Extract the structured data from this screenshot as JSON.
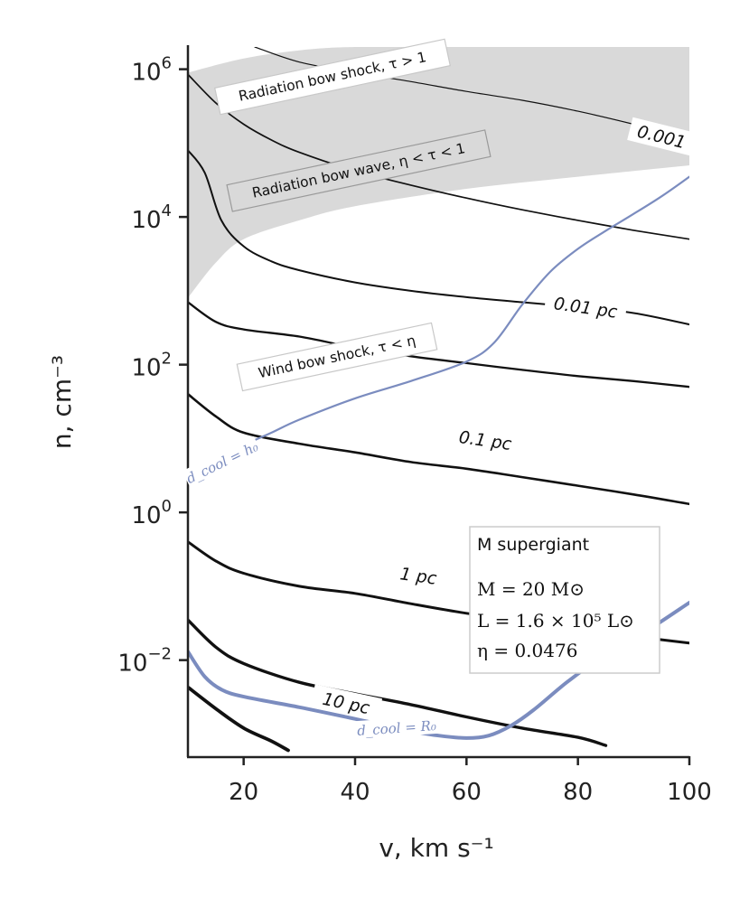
{
  "chart_data": {
    "type": "line",
    "xlabel": "v, km s⁻¹",
    "ylabel": "n, cm⁻³",
    "xlim": [
      10,
      100
    ],
    "ylim": [
      0.0005,
      2000000
    ],
    "y_scale": "log",
    "x_ticks": [
      20,
      40,
      60,
      80,
      100
    ],
    "x_tick_labels": [
      "20",
      "40",
      "60",
      "80",
      "100"
    ],
    "y_ticks": [
      0.01,
      1,
      100,
      10000,
      1000000
    ],
    "y_tick_bases": [
      "10",
      "10",
      "10",
      "10",
      "10"
    ],
    "y_tick_exponents": [
      "−2",
      "0",
      "2",
      "4",
      "6"
    ],
    "grid": false,
    "region_labels": [
      {
        "text": "Radiation bow shock, τ > 1"
      },
      {
        "text": "Radiation bow wave, η < τ < 1"
      },
      {
        "text": "Wind bow shock, τ < η"
      }
    ],
    "contour_labels": [
      "0.001",
      "0.01 pc",
      "0.1 pc",
      "1 pc",
      "10 pc"
    ],
    "cooling_labels": [
      "d_cool = h₀",
      "d_cool = R₀"
    ],
    "info_box": {
      "title": "M supergiant",
      "mass": "M = 20 M⊙",
      "luminosity": "L = 1.6 × 10⁵ L⊙",
      "eta": "η = 0.0476"
    },
    "band": {
      "upper": [
        [
          10,
          900000
        ],
        [
          20,
          1400000
        ],
        [
          30,
          1800000
        ],
        [
          40,
          2000000
        ],
        [
          60,
          2000000
        ],
        [
          80,
          2000000
        ],
        [
          100,
          2000000
        ]
      ],
      "lower": [
        [
          10,
          800
        ],
        [
          15,
          2400
        ],
        [
          20,
          5000
        ],
        [
          30,
          9000
        ],
        [
          40,
          14000
        ],
        [
          60,
          24000
        ],
        [
          80,
          35000
        ],
        [
          100,
          50000
        ]
      ]
    },
    "contours": [
      {
        "points": [
          [
            22,
            2000000
          ],
          [
            30,
            1250000
          ],
          [
            40,
            900000
          ],
          [
            50,
            680000
          ],
          [
            60,
            500000
          ],
          [
            70,
            380000
          ],
          [
            80,
            270000
          ],
          [
            90,
            180000
          ],
          [
            99,
            120000
          ]
        ],
        "stroke": 1.2
      },
      {
        "points": [
          [
            10,
            850000
          ],
          [
            15,
            350000
          ],
          [
            20,
            180000
          ],
          [
            25,
            110000
          ],
          [
            30,
            75000
          ],
          [
            40,
            42000
          ],
          [
            50,
            27000
          ],
          [
            60,
            18000
          ],
          [
            70,
            12500
          ],
          [
            80,
            9000
          ],
          [
            90,
            6600
          ],
          [
            100,
            5000
          ]
        ],
        "stroke": 1.7
      },
      {
        "points": [
          [
            10,
            80000
          ],
          [
            13,
            40000
          ],
          [
            16,
            9000
          ],
          [
            20,
            4000
          ],
          [
            25,
            2500
          ],
          [
            30,
            1900
          ],
          [
            40,
            1300
          ],
          [
            50,
            1000
          ],
          [
            60,
            820
          ],
          [
            70,
            700
          ],
          [
            80,
            600
          ],
          [
            90,
            500
          ],
          [
            100,
            350
          ]
        ],
        "stroke": 2.0
      },
      {
        "points": [
          [
            10,
            700
          ],
          [
            15,
            380
          ],
          [
            20,
            300
          ],
          [
            30,
            240
          ],
          [
            40,
            170
          ],
          [
            50,
            130
          ],
          [
            60,
            105
          ],
          [
            70,
            85
          ],
          [
            80,
            70
          ],
          [
            90,
            60
          ],
          [
            100,
            50
          ]
        ],
        "stroke": 2.3
      },
      {
        "points": [
          [
            10,
            40
          ],
          [
            15,
            20
          ],
          [
            20,
            12
          ],
          [
            30,
            8.5
          ],
          [
            40,
            6.5
          ],
          [
            50,
            4.8
          ],
          [
            60,
            3.9
          ],
          [
            70,
            3.0
          ],
          [
            80,
            2.3
          ],
          [
            90,
            1.75
          ],
          [
            100,
            1.3
          ]
        ],
        "stroke": 2.6
      },
      {
        "points": [
          [
            10,
            0.4
          ],
          [
            15,
            0.22
          ],
          [
            20,
            0.15
          ],
          [
            30,
            0.1
          ],
          [
            40,
            0.08
          ],
          [
            50,
            0.058
          ],
          [
            60,
            0.043
          ],
          [
            70,
            0.034
          ],
          [
            80,
            0.027
          ],
          [
            90,
            0.021
          ],
          [
            100,
            0.017
          ]
        ],
        "stroke": 3.0
      },
      {
        "points": [
          [
            10,
            0.035
          ],
          [
            15,
            0.015
          ],
          [
            20,
            0.009
          ],
          [
            30,
            0.005
          ],
          [
            40,
            0.0035
          ],
          [
            50,
            0.0025
          ],
          [
            60,
            0.0017
          ],
          [
            70,
            0.0012
          ],
          [
            80,
            0.0009
          ],
          [
            85,
            0.0007
          ]
        ],
        "stroke": 3.4
      },
      {
        "points": [
          [
            10,
            0.0043
          ],
          [
            15,
            0.0022
          ],
          [
            20,
            0.0012
          ],
          [
            25,
            0.0008
          ],
          [
            28,
            0.0006
          ]
        ],
        "stroke": 3.8
      }
    ],
    "cooling_curves": [
      {
        "points": [
          [
            10,
            2.4
          ],
          [
            15,
            4.5
          ],
          [
            20,
            8
          ],
          [
            25,
            12
          ],
          [
            30,
            18
          ],
          [
            40,
            35
          ],
          [
            50,
            60
          ],
          [
            60,
            110
          ],
          [
            65,
            200
          ],
          [
            70,
            650
          ],
          [
            75,
            1800
          ],
          [
            80,
            3700
          ],
          [
            85,
            6500
          ],
          [
            90,
            11000
          ],
          [
            95,
            19000
          ],
          [
            100,
            35000
          ]
        ],
        "stroke": 2.2
      },
      {
        "points": [
          [
            10,
            0.013
          ],
          [
            13,
            0.006
          ],
          [
            16,
            0.004
          ],
          [
            20,
            0.0032
          ],
          [
            30,
            0.0023
          ],
          [
            40,
            0.0016
          ],
          [
            50,
            0.0011
          ],
          [
            55,
            0.00095
          ],
          [
            60,
            0.00088
          ],
          [
            64,
            0.00095
          ],
          [
            68,
            0.0013
          ],
          [
            72,
            0.0021
          ],
          [
            78,
            0.005
          ],
          [
            85,
            0.012
          ],
          [
            92,
            0.024
          ],
          [
            100,
            0.06
          ]
        ],
        "stroke": 4.0
      }
    ],
    "colors": {
      "band": "#d9d9d9",
      "contour": "#111111",
      "cooling": "#7b8cbf",
      "axis": "#222222"
    }
  }
}
